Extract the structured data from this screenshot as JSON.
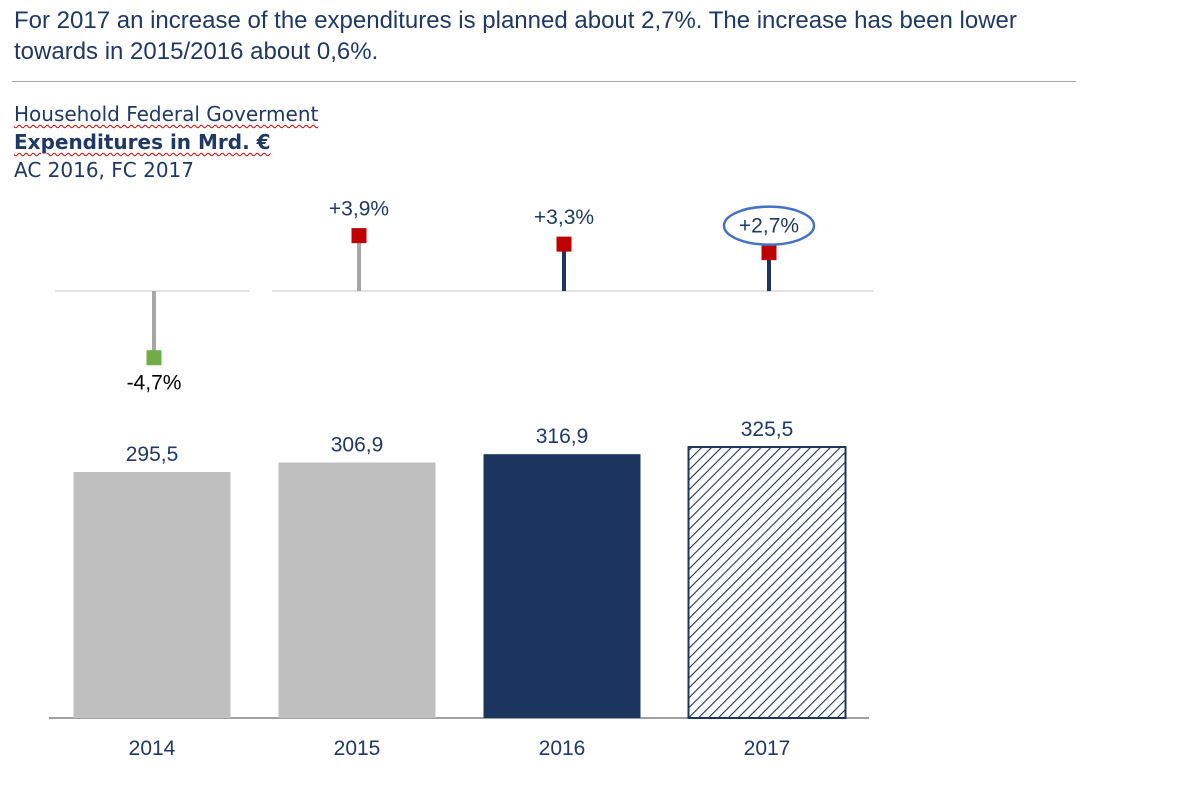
{
  "headline": "For 2017 an increase of the expenditures is planned about 2,7%. The increase has been lower towards in 2015/2016 about 0,6%.",
  "subtitle": {
    "line1": "Household Federal Goverment",
    "line2": "Expenditures in Mrd. €",
    "line3": "AC 2016, FC 2017"
  },
  "colors": {
    "text": "#1f3864",
    "actual_prior": "#bfbfbf",
    "actual_current": "#1c355e",
    "forecast_hatch": "#1c355e",
    "pin_gray": "#a6a6a6",
    "marker_positive": "#c00000",
    "marker_negative": "#70ad47",
    "highlight_ellipse": "#4472c4"
  },
  "chart_data": {
    "type": "bar",
    "categories": [
      "2014",
      "2015",
      "2016",
      "2017"
    ],
    "values": [
      295.5,
      306.9,
      316.9,
      325.5
    ],
    "value_labels": [
      "295,5",
      "306,9",
      "316,9",
      "325,5"
    ],
    "bar_styles": [
      "prior",
      "prior",
      "actual",
      "forecast"
    ],
    "change_pct": [
      -4.7,
      3.9,
      3.3,
      2.7
    ],
    "change_labels": [
      "-4,7%",
      "+3,9%",
      "+3,3%",
      "+2,7%"
    ],
    "highlight_index": 3,
    "ylim": [
      0,
      340
    ],
    "change_ylim": [
      -6,
      6
    ],
    "title": "Expenditures in Mrd. €",
    "xlabel": "",
    "ylabel": ""
  }
}
